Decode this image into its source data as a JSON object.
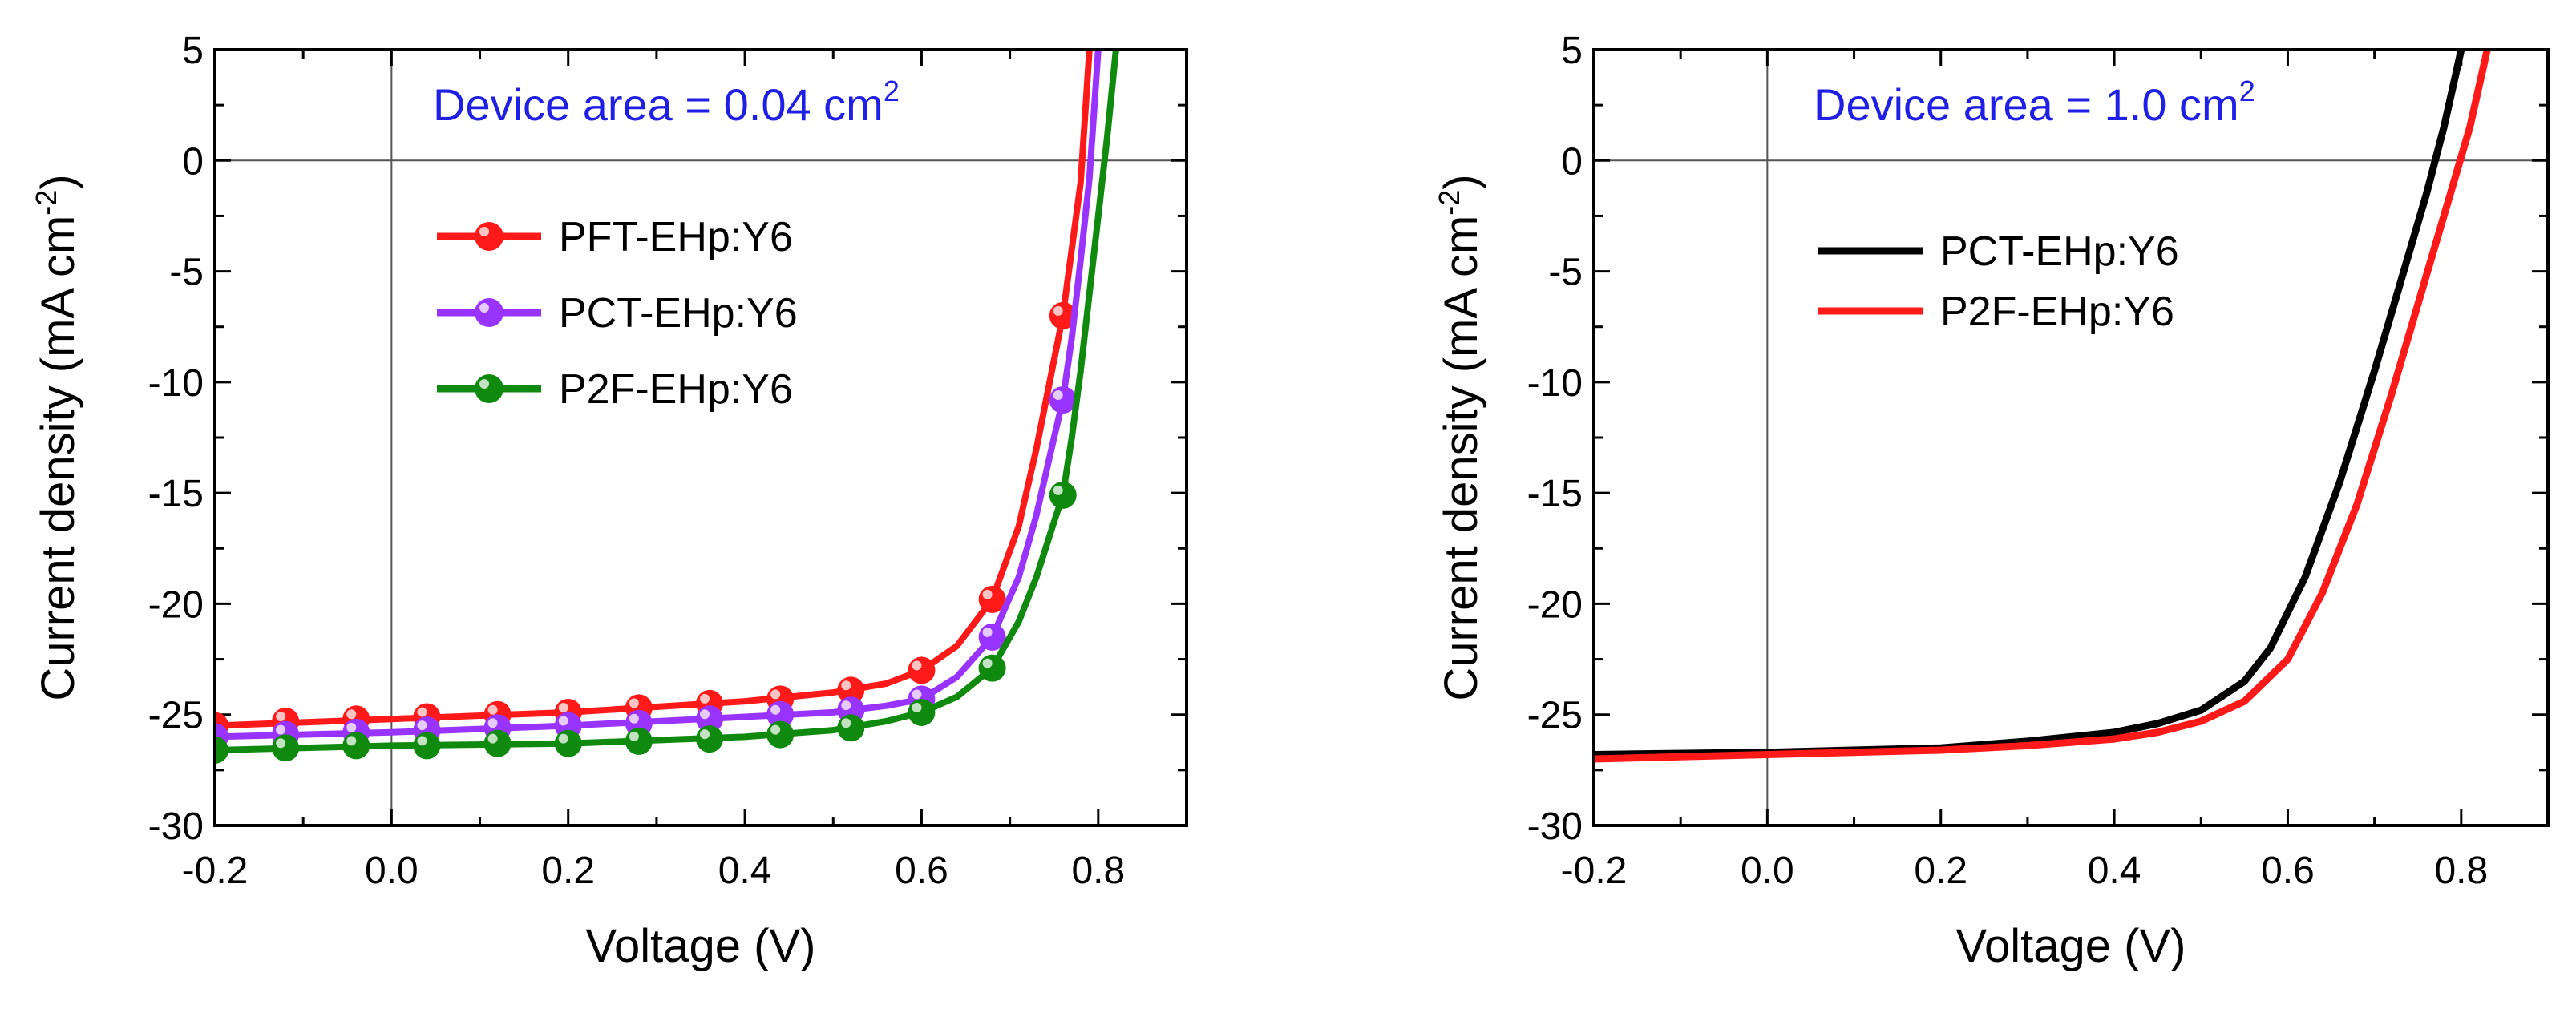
{
  "chart_data": [
    {
      "type": "line",
      "title": "",
      "annotation": {
        "prefix": "Device area = 0.04 cm",
        "sup": "2",
        "color": "#1f1fe6"
      },
      "xlabel": "Voltage (V)",
      "ylabel": {
        "main": "Current density (mA cm",
        "sup": "-2",
        "close": ")"
      },
      "xlim": [
        -0.2,
        0.9
      ],
      "ylim": [
        -30,
        5
      ],
      "xticks": [
        -0.2,
        0.0,
        0.2,
        0.4,
        0.6,
        0.8
      ],
      "xtick_labels": [
        "-0.2",
        "0.0",
        "0.2",
        "0.4",
        "0.6",
        "0.8"
      ],
      "yticks": [
        5,
        0,
        -5,
        -10,
        -15,
        -20,
        -25,
        -30
      ],
      "ytick_labels": [
        "5",
        "0",
        "-5",
        "-10",
        "-15",
        "-20",
        "-25",
        "-30"
      ],
      "grid": false,
      "legend_position": "center-left",
      "series": [
        {
          "name": "PFT-EHp:Y6",
          "color": "#ff1a1a",
          "markers": true,
          "x": [
            -0.2,
            -0.12,
            -0.04,
            0.04,
            0.12,
            0.2,
            0.28,
            0.36,
            0.44,
            0.52,
            0.6,
            0.68,
            0.76
          ],
          "y": [
            -25.5,
            -25.3,
            -25.2,
            -25.1,
            -25.0,
            -24.9,
            -24.7,
            -24.5,
            -24.3,
            -23.9,
            -23.0,
            -19.8,
            -7.0
          ],
          "curve_x": [
            -0.2,
            0.0,
            0.2,
            0.4,
            0.5,
            0.56,
            0.6,
            0.64,
            0.68,
            0.71,
            0.73,
            0.75,
            0.76,
            0.77,
            0.78,
            0.79
          ],
          "curve_y": [
            -25.5,
            -25.2,
            -24.9,
            -24.4,
            -24.0,
            -23.6,
            -23.0,
            -21.9,
            -19.8,
            -16.5,
            -13.0,
            -9.0,
            -7.0,
            -4.0,
            -1.0,
            5.0
          ]
        },
        {
          "name": "PCT-EHp:Y6",
          "color": "#9933ff",
          "markers": true,
          "x": [
            -0.2,
            -0.12,
            -0.04,
            0.04,
            0.12,
            0.2,
            0.28,
            0.36,
            0.44,
            0.52,
            0.6,
            0.68,
            0.76
          ],
          "y": [
            -26.0,
            -25.9,
            -25.8,
            -25.7,
            -25.6,
            -25.5,
            -25.4,
            -25.2,
            -25.0,
            -24.8,
            -24.3,
            -21.5,
            -10.8
          ],
          "curve_x": [
            -0.2,
            0.0,
            0.2,
            0.4,
            0.5,
            0.56,
            0.6,
            0.64,
            0.68,
            0.71,
            0.73,
            0.75,
            0.76,
            0.77,
            0.78,
            0.79,
            0.8
          ],
          "curve_y": [
            -26.0,
            -25.8,
            -25.5,
            -25.1,
            -24.9,
            -24.6,
            -24.3,
            -23.3,
            -21.5,
            -18.8,
            -16.0,
            -12.5,
            -10.8,
            -8.0,
            -4.5,
            -0.8,
            5.0
          ]
        },
        {
          "name": "P2F-EHp:Y6",
          "color": "#0f8a0f",
          "markers": true,
          "x": [
            -0.2,
            -0.12,
            -0.04,
            0.04,
            0.12,
            0.2,
            0.28,
            0.36,
            0.44,
            0.52,
            0.6,
            0.68,
            0.76
          ],
          "y": [
            -26.6,
            -26.5,
            -26.4,
            -26.4,
            -26.3,
            -26.3,
            -26.2,
            -26.1,
            -25.9,
            -25.6,
            -24.9,
            -22.9,
            -15.1
          ],
          "curve_x": [
            -0.2,
            0.0,
            0.2,
            0.4,
            0.5,
            0.56,
            0.6,
            0.64,
            0.68,
            0.71,
            0.73,
            0.75,
            0.76,
            0.77,
            0.78,
            0.79,
            0.8,
            0.81,
            0.82
          ],
          "curve_y": [
            -26.6,
            -26.4,
            -26.3,
            -26.0,
            -25.7,
            -25.3,
            -24.9,
            -24.2,
            -22.9,
            -20.8,
            -18.8,
            -16.3,
            -15.1,
            -12.5,
            -9.5,
            -6.0,
            -2.5,
            1.0,
            5.0
          ]
        }
      ]
    },
    {
      "type": "line",
      "title": "",
      "annotation": {
        "prefix": "Device area = 1.0 cm",
        "sup": "2",
        "color": "#1f1fe6"
      },
      "xlabel": "Voltage (V)",
      "ylabel": {
        "main": "Current density (mA cm",
        "sup": "-2",
        "close": ")"
      },
      "xlim": [
        -0.2,
        0.9
      ],
      "ylim": [
        -30,
        5
      ],
      "xticks": [
        -0.2,
        0.0,
        0.2,
        0.4,
        0.6,
        0.8
      ],
      "xtick_labels": [
        "-0.2",
        "0.0",
        "0.2",
        "0.4",
        "0.6",
        "0.8"
      ],
      "yticks": [
        5,
        0,
        -5,
        -10,
        -15,
        -20,
        -25,
        -30
      ],
      "ytick_labels": [
        "5",
        "0",
        "-5",
        "-10",
        "-15",
        "-20",
        "-25",
        "-30"
      ],
      "grid": false,
      "legend_position": "center-left",
      "series": [
        {
          "name": "PCT-EHp:Y6",
          "color": "#000000",
          "markers": false,
          "curve_x": [
            -0.2,
            0.0,
            0.2,
            0.3,
            0.4,
            0.45,
            0.5,
            0.55,
            0.58,
            0.62,
            0.66,
            0.7,
            0.73,
            0.76,
            0.78,
            0.8
          ],
          "curve_y": [
            -26.8,
            -26.7,
            -26.5,
            -26.2,
            -25.8,
            -25.4,
            -24.8,
            -23.5,
            -22.0,
            -18.8,
            -14.5,
            -9.5,
            -5.5,
            -1.5,
            1.5,
            5.0
          ]
        },
        {
          "name": "P2F-EHp:Y6",
          "color": "#ff1a1a",
          "markers": false,
          "curve_x": [
            -0.2,
            0.0,
            0.2,
            0.3,
            0.4,
            0.45,
            0.5,
            0.55,
            0.6,
            0.64,
            0.68,
            0.72,
            0.75,
            0.78,
            0.81,
            0.83
          ],
          "curve_y": [
            -27.0,
            -26.8,
            -26.6,
            -26.4,
            -26.1,
            -25.8,
            -25.3,
            -24.4,
            -22.5,
            -19.5,
            -15.5,
            -10.5,
            -6.5,
            -2.5,
            1.5,
            5.0
          ]
        }
      ]
    }
  ]
}
